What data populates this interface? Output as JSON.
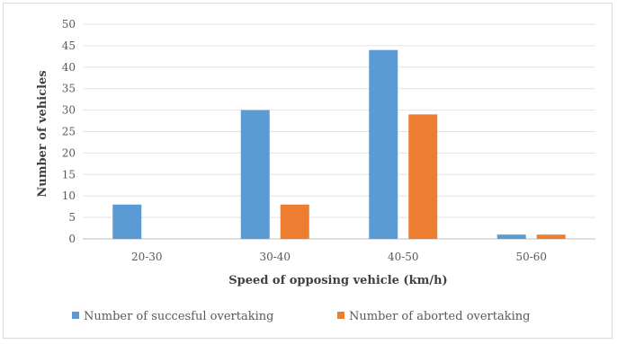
{
  "chart_data": {
    "type": "bar",
    "title": "",
    "xlabel": "Speed of opposing vehicle (km/h)",
    "ylabel": "Number of vehicles",
    "categories": [
      "20-30",
      "30-40",
      "40-50",
      "50-60"
    ],
    "ylim": [
      0,
      50
    ],
    "yticks": [
      0,
      5,
      10,
      15,
      20,
      25,
      30,
      35,
      40,
      45,
      50
    ],
    "grid": true,
    "legend_position": "bottom",
    "series": [
      {
        "name": "Number of succesful overtaking",
        "color": "#5b9bd5",
        "values": [
          8,
          30,
          44,
          1
        ]
      },
      {
        "name": "Number of aborted overtaking",
        "color": "#ed7d31",
        "values": [
          0,
          8,
          29,
          1
        ]
      }
    ]
  }
}
